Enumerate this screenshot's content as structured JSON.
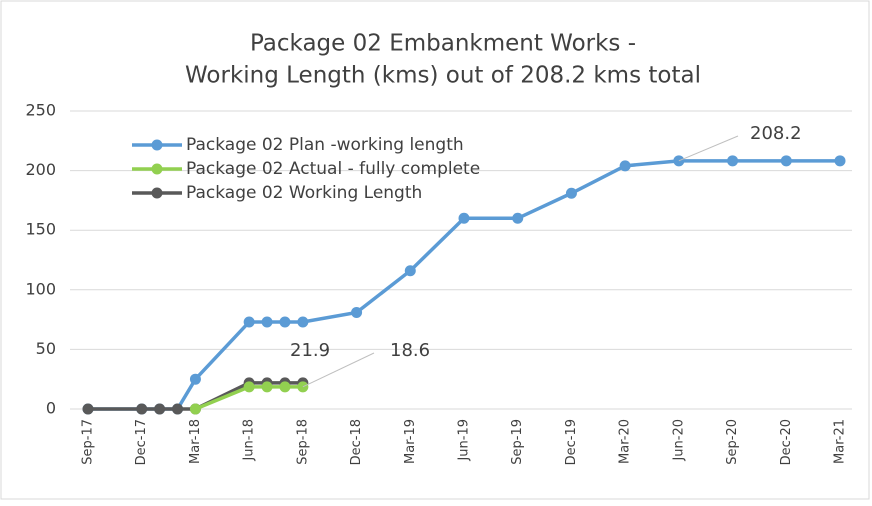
{
  "chart_data": {
    "type": "line",
    "title": [
      "Package 02 Embankment Works -",
      "Working Length (kms) out of 208.2 kms total"
    ],
    "x": [
      "Sep-17",
      "Dec-17",
      "Jan-18",
      "Feb-18",
      "Mar-18",
      "Jun-18",
      "Jul-18",
      "Aug-18",
      "Sep-18",
      "Dec-18",
      "Mar-19",
      "Jun-19",
      "Sep-19",
      "Dec-19",
      "Mar-20",
      "Jun-20",
      "Sep-20",
      "Dec-20",
      "Mar-21"
    ],
    "xticks": [
      "Sep-17",
      "Dec-17",
      "Mar-18",
      "Jun-18",
      "Sep-18",
      "Dec-18",
      "Mar-19",
      "Jun-19",
      "Sep-19",
      "Dec-19",
      "Mar-20",
      "Jun-20",
      "Sep-20",
      "Dec-20",
      "Mar-21"
    ],
    "series": [
      {
        "name": "Package 02 Plan -working length",
        "color": "#5b9bd5",
        "values": [
          0,
          0,
          0,
          0,
          25,
          73,
          73,
          73,
          73,
          81,
          116,
          160,
          160,
          181,
          204,
          208.2,
          208.2,
          208.2,
          208.2
        ]
      },
      {
        "name": "Package 02 Actual - fully complete",
        "color": "#92d050",
        "values": [
          null,
          null,
          null,
          null,
          0,
          18.6,
          18.6,
          18.6,
          18.6,
          null,
          null,
          null,
          null,
          null,
          null,
          null,
          null,
          null,
          null
        ]
      },
      {
        "name": "Package 02 Working Length",
        "color": "#595959",
        "values": [
          0,
          0,
          0,
          0,
          0,
          21.9,
          21.9,
          21.9,
          21.9,
          null,
          null,
          null,
          null,
          null,
          null,
          null,
          null,
          null,
          null
        ]
      }
    ],
    "ylim": [
      0,
      250
    ],
    "yticks": [
      0,
      50,
      100,
      150,
      200,
      250
    ],
    "grid": true
  }
}
